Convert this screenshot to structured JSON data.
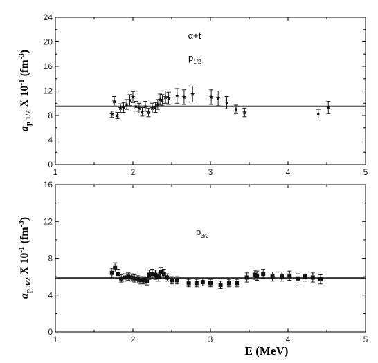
{
  "chart_data": [
    {
      "type": "scatter",
      "ylabel": {
        "main": "a",
        "sub": "p 1/2",
        "rest": " X 10",
        "sup1": "-1",
        "unit_open": " (fm",
        "sup2": "-3",
        "unit_close": ")"
      },
      "annotations": {
        "reaction": "α+t",
        "wave": {
          "main": "p",
          "sub": "1/2"
        }
      },
      "xlim": [
        1,
        5
      ],
      "ylim": [
        0,
        24
      ],
      "xticks": [
        1,
        2,
        3,
        4,
        5
      ],
      "yticks": [
        0,
        4,
        8,
        12,
        16,
        20,
        24
      ],
      "reference_line_y": 9.5,
      "marker": "star",
      "series": [
        {
          "points": [
            {
              "x": 1.73,
              "y": 8.2,
              "err": 0.5
            },
            {
              "x": 1.76,
              "y": 10.3,
              "err": 0.8
            },
            {
              "x": 1.8,
              "y": 8.0,
              "err": 0.5
            },
            {
              "x": 1.84,
              "y": 9.2,
              "err": 0.7
            },
            {
              "x": 1.88,
              "y": 9.3,
              "err": 0.8
            },
            {
              "x": 1.92,
              "y": 9.8,
              "err": 0.8
            },
            {
              "x": 1.96,
              "y": 10.5,
              "err": 0.9
            },
            {
              "x": 2.0,
              "y": 11.0,
              "err": 0.9
            },
            {
              "x": 2.04,
              "y": 9.5,
              "err": 0.8
            },
            {
              "x": 2.08,
              "y": 9.2,
              "err": 0.8
            },
            {
              "x": 2.12,
              "y": 8.6,
              "err": 0.7
            },
            {
              "x": 2.16,
              "y": 9.5,
              "err": 0.8
            },
            {
              "x": 2.2,
              "y": 8.5,
              "err": 0.7
            },
            {
              "x": 2.25,
              "y": 9.2,
              "err": 0.8
            },
            {
              "x": 2.29,
              "y": 9.3,
              "err": 0.8
            },
            {
              "x": 2.32,
              "y": 9.8,
              "err": 0.8
            },
            {
              "x": 2.35,
              "y": 10.6,
              "err": 0.9
            },
            {
              "x": 2.38,
              "y": 10.5,
              "err": 0.9
            },
            {
              "x": 2.42,
              "y": 11.0,
              "err": 1.0
            },
            {
              "x": 2.46,
              "y": 10.8,
              "err": 1.0
            },
            {
              "x": 2.57,
              "y": 11.2,
              "err": 1.2
            },
            {
              "x": 2.66,
              "y": 11.0,
              "err": 1.2
            },
            {
              "x": 2.77,
              "y": 11.5,
              "err": 1.3
            },
            {
              "x": 3.01,
              "y": 11.0,
              "err": 1.2
            },
            {
              "x": 3.1,
              "y": 10.8,
              "err": 1.2
            },
            {
              "x": 3.21,
              "y": 10.1,
              "err": 1.0
            },
            {
              "x": 3.33,
              "y": 9.0,
              "err": 0.7
            },
            {
              "x": 3.44,
              "y": 8.5,
              "err": 0.7
            },
            {
              "x": 4.39,
              "y": 8.3,
              "err": 0.7
            },
            {
              "x": 4.52,
              "y": 9.3,
              "err": 1.0
            }
          ]
        }
      ]
    },
    {
      "type": "scatter",
      "ylabel": {
        "main": "a",
        "sub": "p 3/2",
        "rest": " X 10",
        "sup1": "-1",
        "unit_open": " (fm",
        "sup2": "-3",
        "unit_close": ")"
      },
      "xlabel": "E (MeV)",
      "annotations": {
        "wave": {
          "main": "p",
          "sub": "3/2"
        }
      },
      "xlim": [
        1,
        5
      ],
      "ylim": [
        0,
        16
      ],
      "xticks": [
        1,
        2,
        3,
        4,
        5
      ],
      "yticks": [
        0,
        4,
        8,
        12,
        16
      ],
      "reference_line_y": 5.85,
      "marker": "square",
      "series": [
        {
          "points": [
            {
              "x": 1.73,
              "y": 6.4,
              "err": 0.5
            },
            {
              "x": 1.77,
              "y": 7.0,
              "err": 0.5
            },
            {
              "x": 1.81,
              "y": 6.3,
              "err": 0.5
            },
            {
              "x": 1.85,
              "y": 5.8,
              "err": 0.4
            },
            {
              "x": 1.9,
              "y": 5.9,
              "err": 0.4
            },
            {
              "x": 1.94,
              "y": 6.0,
              "err": 0.4
            },
            {
              "x": 1.98,
              "y": 5.9,
              "err": 0.4
            },
            {
              "x": 2.02,
              "y": 5.8,
              "err": 0.4
            },
            {
              "x": 2.06,
              "y": 5.7,
              "err": 0.4
            },
            {
              "x": 2.1,
              "y": 5.6,
              "err": 0.4
            },
            {
              "x": 2.14,
              "y": 5.6,
              "err": 0.4
            },
            {
              "x": 2.18,
              "y": 5.5,
              "err": 0.4
            },
            {
              "x": 2.21,
              "y": 6.2,
              "err": 0.5
            },
            {
              "x": 2.25,
              "y": 6.3,
              "err": 0.5
            },
            {
              "x": 2.29,
              "y": 6.2,
              "err": 0.5
            },
            {
              "x": 2.33,
              "y": 6.0,
              "err": 0.5
            },
            {
              "x": 2.36,
              "y": 6.5,
              "err": 0.5
            },
            {
              "x": 2.4,
              "y": 6.3,
              "err": 0.5
            },
            {
              "x": 2.44,
              "y": 5.9,
              "err": 0.4
            },
            {
              "x": 2.5,
              "y": 5.6,
              "err": 0.4
            },
            {
              "x": 2.57,
              "y": 5.6,
              "err": 0.4
            },
            {
              "x": 2.72,
              "y": 5.3,
              "err": 0.4
            },
            {
              "x": 2.82,
              "y": 5.3,
              "err": 0.4
            },
            {
              "x": 2.9,
              "y": 5.4,
              "err": 0.4
            },
            {
              "x": 3.0,
              "y": 5.3,
              "err": 0.4
            },
            {
              "x": 3.13,
              "y": 5.1,
              "err": 0.4
            },
            {
              "x": 3.24,
              "y": 5.3,
              "err": 0.4
            },
            {
              "x": 3.34,
              "y": 5.3,
              "err": 0.4
            },
            {
              "x": 3.47,
              "y": 5.9,
              "err": 0.5
            },
            {
              "x": 3.57,
              "y": 6.2,
              "err": 0.5
            },
            {
              "x": 3.6,
              "y": 6.1,
              "err": 0.5
            },
            {
              "x": 3.68,
              "y": 6.3,
              "err": 0.5
            },
            {
              "x": 3.8,
              "y": 6.0,
              "err": 0.5
            },
            {
              "x": 3.92,
              "y": 6.0,
              "err": 0.5
            },
            {
              "x": 4.02,
              "y": 6.1,
              "err": 0.5
            },
            {
              "x": 4.13,
              "y": 5.8,
              "err": 0.5
            },
            {
              "x": 4.22,
              "y": 6.0,
              "err": 0.5
            },
            {
              "x": 4.32,
              "y": 5.9,
              "err": 0.5
            },
            {
              "x": 4.42,
              "y": 5.7,
              "err": 0.5
            }
          ]
        }
      ]
    }
  ]
}
